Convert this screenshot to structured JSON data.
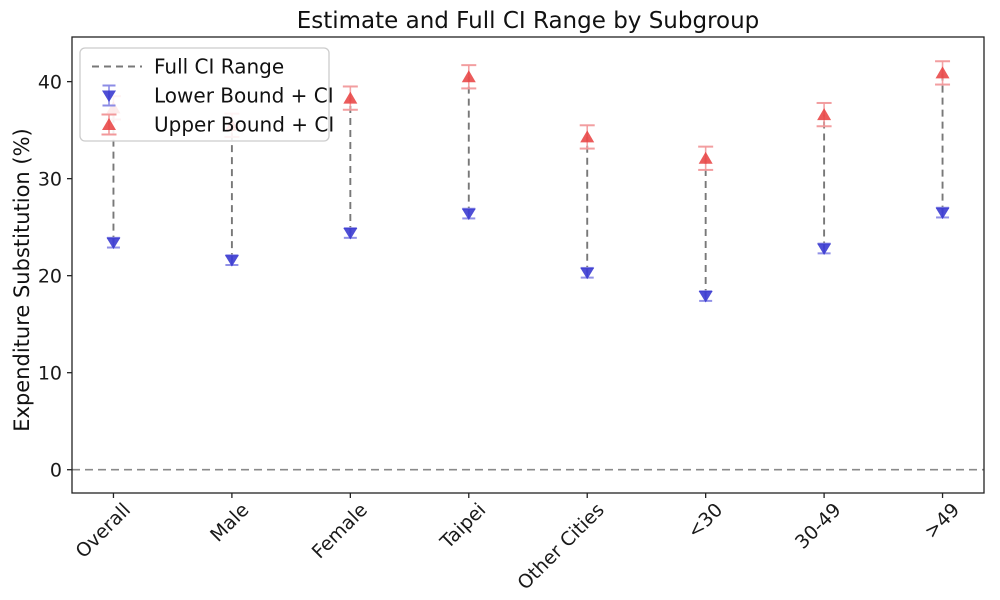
{
  "figure": {
    "title": "Estimate and Full CI Range by Subgroup",
    "ylabel": "Expenditure Substitution (%)"
  },
  "chart_data": {
    "type": "scatter",
    "variant": "dumbbell-range-errorbar",
    "title": "Estimate and Full CI Range by Subgroup",
    "xlabel": "",
    "ylabel": "Expenditure Substitution (%)",
    "categories": [
      "Overall",
      "Male",
      "Female",
      "Taipei",
      "Other Cities",
      "<30",
      "30-49",
      ">49"
    ],
    "series": [
      {
        "name": "Lower Bound + CI",
        "marker": "triangle-down",
        "color": "#3535cf",
        "cap_color": "#8c8ce6",
        "values": [
          23.4,
          21.6,
          24.4,
          26.4,
          20.3,
          17.9,
          22.8,
          26.5
        ],
        "ci": 0.5
      },
      {
        "name": "Upper Bound + CI",
        "marker": "triangle-up",
        "color": "#e84444",
        "cap_color": "#f2999b",
        "values": [
          37.3,
          35.5,
          38.3,
          40.5,
          34.3,
          32.1,
          36.6,
          40.9
        ],
        "ci": 1.2
      }
    ],
    "connector": {
      "name": "Full CI Range",
      "style": "dashed",
      "color": "#787878"
    },
    "zero_line": {
      "y": 0,
      "style": "dashed",
      "color": "#8a8a8a"
    },
    "yticks": [
      0,
      10,
      20,
      30,
      40
    ],
    "ylim": [
      -2.4,
      44.6
    ],
    "grid": false,
    "legend": {
      "position": "upper left",
      "entries": [
        "Full CI Range",
        "Lower Bound + CI",
        "Upper Bound + CI"
      ]
    },
    "axis_color": "#222222",
    "tick_label_color": "#1a1a1a"
  }
}
